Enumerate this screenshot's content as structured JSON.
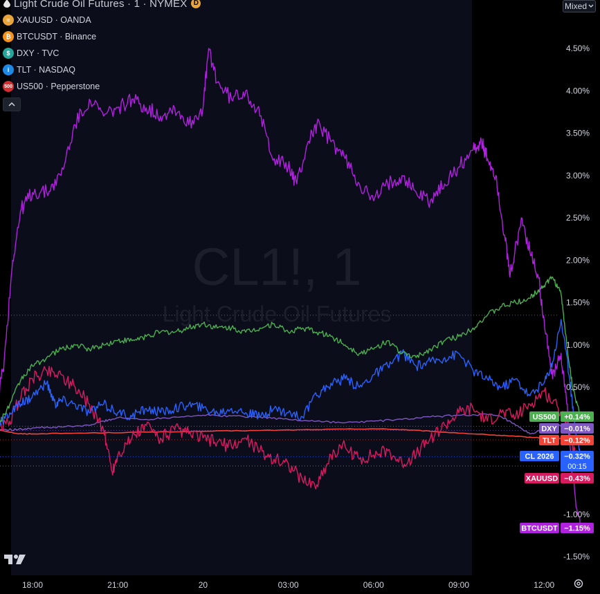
{
  "chart_data": {
    "type": "line",
    "title": "Light Crude Oil Futures · 1 · NYMEX",
    "watermark": {
      "symbol": "CL1!, 1",
      "name": "Light Crude Oil Futures"
    },
    "x_ticks": [
      "18:00",
      "21:00",
      "20",
      "03:00",
      "06:00",
      "09:00",
      "12:00"
    ],
    "y_ticks": [
      "4.50%",
      "4.00%",
      "3.50%",
      "3.00%",
      "2.50%",
      "2.00%",
      "1.50%",
      "1.00%",
      "0.50%",
      "-1.00%",
      "-1.50%"
    ],
    "y_tick_values": [
      4.5,
      4.0,
      3.5,
      3.0,
      2.5,
      2.0,
      1.5,
      1.0,
      0.5,
      -1.0,
      -1.5
    ],
    "ylim": [
      -1.6,
      4.9
    ],
    "x_range_hours": [
      16.7,
      12.5
    ],
    "grid": false,
    "series": [
      {
        "name": "BTCUSDT",
        "color": "#b121e0",
        "points": [
          [
            16.8,
            0.4
          ],
          [
            17.0,
            0.8
          ],
          [
            17.3,
            2.0
          ],
          [
            17.6,
            2.6
          ],
          [
            18.0,
            2.8
          ],
          [
            18.5,
            2.8
          ],
          [
            19.0,
            3.0
          ],
          [
            19.5,
            3.6
          ],
          [
            20.0,
            3.9
          ],
          [
            20.5,
            3.7
          ],
          [
            21.0,
            3.8
          ],
          [
            21.5,
            3.9
          ],
          [
            22.0,
            3.8
          ],
          [
            22.5,
            3.7
          ],
          [
            23.0,
            3.8
          ],
          [
            23.5,
            3.6
          ],
          [
            24.0,
            3.8
          ],
          [
            24.2,
            4.5
          ],
          [
            24.5,
            4.1
          ],
          [
            25.0,
            3.9
          ],
          [
            25.5,
            4.0
          ],
          [
            26.0,
            3.7
          ],
          [
            26.5,
            3.2
          ],
          [
            27.0,
            3.1
          ],
          [
            27.3,
            2.9
          ],
          [
            27.7,
            3.4
          ],
          [
            28.0,
            3.6
          ],
          [
            28.5,
            3.4
          ],
          [
            29.0,
            3.2
          ],
          [
            29.5,
            2.9
          ],
          [
            30.0,
            2.7
          ],
          [
            30.5,
            2.9
          ],
          [
            31.0,
            3.0
          ],
          [
            31.5,
            2.8
          ],
          [
            32.0,
            2.7
          ],
          [
            32.5,
            2.9
          ],
          [
            33.0,
            3.1
          ],
          [
            33.5,
            3.3
          ],
          [
            33.8,
            3.4
          ],
          [
            34.0,
            3.2
          ],
          [
            34.3,
            3.0
          ],
          [
            34.6,
            2.3
          ],
          [
            34.8,
            1.8
          ],
          [
            35.2,
            2.5
          ],
          [
            35.5,
            2.1
          ],
          [
            35.8,
            1.8
          ],
          [
            36.0,
            1.3
          ],
          [
            36.3,
            0.6
          ],
          [
            36.6,
            0.9
          ],
          [
            36.8,
            0.3
          ],
          [
            37.0,
            -0.6
          ],
          [
            37.3,
            -1.15
          ]
        ]
      },
      {
        "name": "US500",
        "color": "#4caf50",
        "points": [
          [
            16.8,
            0.05
          ],
          [
            17.2,
            0.3
          ],
          [
            17.6,
            0.6
          ],
          [
            18.0,
            0.75
          ],
          [
            18.5,
            0.85
          ],
          [
            19.0,
            0.95
          ],
          [
            19.5,
            1.0
          ],
          [
            20.0,
            0.95
          ],
          [
            20.5,
            1.0
          ],
          [
            21.0,
            1.05
          ],
          [
            21.5,
            1.05
          ],
          [
            22.0,
            1.1
          ],
          [
            22.5,
            1.15
          ],
          [
            23.0,
            1.15
          ],
          [
            23.5,
            1.2
          ],
          [
            24.0,
            1.25
          ],
          [
            24.5,
            1.2
          ],
          [
            25.0,
            1.2
          ],
          [
            25.5,
            1.15
          ],
          [
            26.0,
            1.2
          ],
          [
            26.5,
            1.25
          ],
          [
            27.0,
            1.15
          ],
          [
            27.5,
            1.2
          ],
          [
            28.0,
            1.15
          ],
          [
            28.5,
            1.1
          ],
          [
            29.0,
            1.0
          ],
          [
            29.5,
            0.9
          ],
          [
            30.0,
            0.95
          ],
          [
            30.5,
            1.05
          ],
          [
            31.0,
            0.9
          ],
          [
            31.5,
            0.85
          ],
          [
            32.0,
            0.95
          ],
          [
            32.5,
            1.05
          ],
          [
            33.0,
            1.1
          ],
          [
            33.5,
            1.2
          ],
          [
            34.0,
            1.35
          ],
          [
            34.5,
            1.45
          ],
          [
            35.0,
            1.5
          ],
          [
            35.5,
            1.55
          ],
          [
            35.8,
            1.65
          ],
          [
            36.0,
            1.7
          ],
          [
            36.3,
            1.8
          ],
          [
            36.6,
            1.6
          ],
          [
            36.8,
            1.0
          ],
          [
            37.0,
            0.5
          ],
          [
            37.3,
            0.14
          ]
        ]
      },
      {
        "name": "CL1!",
        "color": "#2962ff",
        "points": [
          [
            16.8,
            0.05
          ],
          [
            17.2,
            0.2
          ],
          [
            17.6,
            0.3
          ],
          [
            18.0,
            0.4
          ],
          [
            18.5,
            0.55
          ],
          [
            18.8,
            0.3
          ],
          [
            19.0,
            0.35
          ],
          [
            19.5,
            0.3
          ],
          [
            20.0,
            0.2
          ],
          [
            20.5,
            0.3
          ],
          [
            21.0,
            0.2
          ],
          [
            21.5,
            0.15
          ],
          [
            22.0,
            0.25
          ],
          [
            22.5,
            0.2
          ],
          [
            23.0,
            0.25
          ],
          [
            23.5,
            0.3
          ],
          [
            24.0,
            0.25
          ],
          [
            24.5,
            0.2
          ],
          [
            25.0,
            0.25
          ],
          [
            25.5,
            0.2
          ],
          [
            26.0,
            0.15
          ],
          [
            26.5,
            0.25
          ],
          [
            27.0,
            0.2
          ],
          [
            27.5,
            0.15
          ],
          [
            28.0,
            0.4
          ],
          [
            28.5,
            0.55
          ],
          [
            29.0,
            0.6
          ],
          [
            29.5,
            0.5
          ],
          [
            30.0,
            0.65
          ],
          [
            30.5,
            0.75
          ],
          [
            31.0,
            0.9
          ],
          [
            31.5,
            0.75
          ],
          [
            32.0,
            0.8
          ],
          [
            32.5,
            0.85
          ],
          [
            33.0,
            0.9
          ],
          [
            33.5,
            0.7
          ],
          [
            34.0,
            0.6
          ],
          [
            34.5,
            0.5
          ],
          [
            35.0,
            0.6
          ],
          [
            35.5,
            0.4
          ],
          [
            36.0,
            0.55
          ],
          [
            36.3,
            0.8
          ],
          [
            36.6,
            1.3
          ],
          [
            36.9,
            0.6
          ],
          [
            37.1,
            0.0
          ],
          [
            37.3,
            -0.32
          ]
        ]
      },
      {
        "name": "XAUUSD",
        "color": "#d81b60",
        "points": [
          [
            16.8,
            0.0
          ],
          [
            17.2,
            0.1
          ],
          [
            17.6,
            0.4
          ],
          [
            18.0,
            0.6
          ],
          [
            18.5,
            0.7
          ],
          [
            19.0,
            0.65
          ],
          [
            19.5,
            0.5
          ],
          [
            20.0,
            0.3
          ],
          [
            20.5,
            0.0
          ],
          [
            20.8,
            -0.5
          ],
          [
            21.0,
            -0.3
          ],
          [
            21.5,
            -0.1
          ],
          [
            22.0,
            0.05
          ],
          [
            22.5,
            -0.1
          ],
          [
            23.0,
            0.0
          ],
          [
            23.5,
            -0.05
          ],
          [
            24.0,
            -0.1
          ],
          [
            24.5,
            -0.15
          ],
          [
            25.0,
            -0.2
          ],
          [
            25.5,
            -0.1
          ],
          [
            26.0,
            -0.25
          ],
          [
            26.5,
            -0.35
          ],
          [
            27.0,
            -0.4
          ],
          [
            27.5,
            -0.6
          ],
          [
            28.0,
            -0.65
          ],
          [
            28.5,
            -0.3
          ],
          [
            29.0,
            -0.2
          ],
          [
            29.5,
            -0.35
          ],
          [
            30.0,
            -0.3
          ],
          [
            30.5,
            -0.25
          ],
          [
            31.0,
            -0.4
          ],
          [
            31.5,
            -0.3
          ],
          [
            32.0,
            -0.1
          ],
          [
            32.5,
            0.05
          ],
          [
            33.0,
            0.2
          ],
          [
            33.5,
            0.25
          ],
          [
            34.0,
            0.1
          ],
          [
            34.5,
            0.2
          ],
          [
            35.0,
            0.15
          ],
          [
            35.5,
            0.3
          ],
          [
            36.0,
            0.45
          ],
          [
            36.5,
            0.25
          ],
          [
            36.8,
            0.1
          ],
          [
            37.0,
            -0.2
          ],
          [
            37.3,
            -0.43
          ]
        ]
      },
      {
        "name": "DXY",
        "color": "#7e57c2",
        "points": [
          [
            16.8,
            0.0
          ],
          [
            17.5,
            0.0
          ],
          [
            18.0,
            0.02
          ],
          [
            19.0,
            0.03
          ],
          [
            20.0,
            0.05
          ],
          [
            20.5,
            0.1
          ],
          [
            21.0,
            0.14
          ],
          [
            22.0,
            0.12
          ],
          [
            23.0,
            0.15
          ],
          [
            24.0,
            0.17
          ],
          [
            25.0,
            0.16
          ],
          [
            26.0,
            0.15
          ],
          [
            27.0,
            0.12
          ],
          [
            28.0,
            0.1
          ],
          [
            29.0,
            0.08
          ],
          [
            30.0,
            0.1
          ],
          [
            31.0,
            0.12
          ],
          [
            32.0,
            0.15
          ],
          [
            33.0,
            0.17
          ],
          [
            34.0,
            0.18
          ],
          [
            34.5,
            0.15
          ],
          [
            35.0,
            0.05
          ],
          [
            35.5,
            -0.05
          ],
          [
            36.0,
            0.0
          ],
          [
            36.5,
            0.05
          ],
          [
            37.0,
            0.0
          ],
          [
            37.3,
            -0.01
          ]
        ]
      },
      {
        "name": "TLT",
        "color": "#f44336",
        "points": [
          [
            16.8,
            0.0
          ],
          [
            17.5,
            -0.05
          ],
          [
            18.0,
            -0.05
          ],
          [
            20.0,
            -0.04
          ],
          [
            22.0,
            -0.03
          ],
          [
            24.0,
            -0.02
          ],
          [
            26.0,
            -0.01
          ],
          [
            28.0,
            0.0
          ],
          [
            30.0,
            0.01
          ],
          [
            31.0,
            0.0
          ],
          [
            32.0,
            -0.02
          ],
          [
            34.0,
            -0.06
          ],
          [
            35.0,
            -0.08
          ],
          [
            36.0,
            -0.1
          ],
          [
            37.0,
            -0.11
          ],
          [
            37.3,
            -0.12
          ]
        ]
      }
    ]
  },
  "header": {
    "title": "Light Crude Oil Futures · 1 · NYMEX",
    "d_badge": "D"
  },
  "legend": {
    "items": [
      {
        "label": "XAUUSD · OANDA",
        "icon": "gold-coin-icon",
        "color": "#e8a33a",
        "glyph": "≈"
      },
      {
        "label": "BTCUSDT · Binance",
        "icon": "bitcoin-icon",
        "color": "#f7931a",
        "glyph": "₿"
      },
      {
        "label": "DXY · TVC",
        "icon": "dollar-icon",
        "color": "#26a69a",
        "glyph": "$"
      },
      {
        "label": "TLT · NASDAQ",
        "icon": "info-icon",
        "color": "#1e88e5",
        "glyph": "i"
      },
      {
        "label": "US500 · Pepperstone",
        "icon": "sp500-icon",
        "color": "#d32f2f",
        "glyph": "500"
      }
    ]
  },
  "scale_mode": "Mixed",
  "price_labels": [
    {
      "name": "US500",
      "value": "+0.14%",
      "color": "#4caf50"
    },
    {
      "name": "DXY",
      "value": "−0.01%",
      "color": "#7e57c2"
    },
    {
      "name": "TLT",
      "value": "−0.12%",
      "color": "#f44336"
    },
    {
      "name": "CL 2026",
      "value": "−0.32%",
      "extra": "00:15",
      "color": "#2962ff"
    },
    {
      "name": "XAUUSD",
      "value": "−0.43%",
      "color": "#d81b60"
    },
    {
      "name": "BTCUSDT",
      "value": "−1.15%",
      "color": "#b121e0"
    }
  ]
}
